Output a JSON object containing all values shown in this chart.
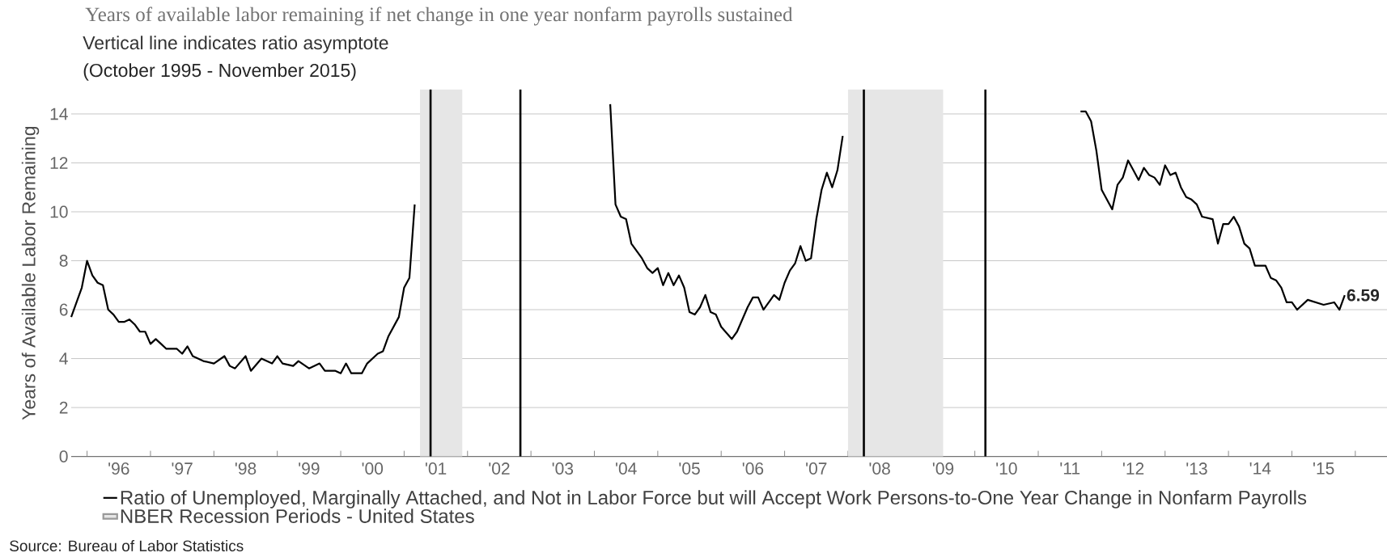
{
  "chart_data": {
    "type": "line",
    "title": "Years of available labor remaining if net change in one year nonfarm payrolls sustained",
    "subtitle": "Vertical line indicates ratio asymptote",
    "annotations": [
      "(October 1995 - November 2015)",
      "Source: Bureau of Labor Statistics"
    ],
    "ylabel": "Years of Available Labor Remaining",
    "x": [
      "1995-10",
      "1995-12",
      "1996-01",
      "1996-02",
      "1996-03",
      "1996-04",
      "1996-05",
      "1996-06",
      "1996-07",
      "1996-08",
      "1996-09",
      "1996-10",
      "1996-11",
      "1996-12",
      "1997-01",
      "1997-02",
      "1997-03",
      "1997-04",
      "1997-06",
      "1997-07",
      "1997-08",
      "1997-09",
      "1997-11",
      "1998-01",
      "1998-03",
      "1998-04",
      "1998-05",
      "1998-07",
      "1998-08",
      "1998-10",
      "1998-12",
      "1999-01",
      "1999-02",
      "1999-04",
      "1999-05",
      "1999-07",
      "1999-09",
      "1999-10",
      "1999-12",
      "2000-01",
      "2000-02",
      "2000-03",
      "2000-05",
      "2000-06",
      "2000-08",
      "2000-09",
      "2000-10",
      "2000-12",
      "2001-01",
      "2001-02",
      "2001-03",
      "2001-04",
      "2004-03",
      "2004-04",
      "2004-05",
      "2004-06",
      "2004-07",
      "2004-08",
      "2004-10",
      "2004-11",
      "2004-12",
      "2005-01",
      "2005-02",
      "2005-03",
      "2005-04",
      "2005-05",
      "2005-06",
      "2005-07",
      "2005-08",
      "2005-09",
      "2005-10",
      "2005-11",
      "2005-12",
      "2006-01",
      "2006-03",
      "2006-04",
      "2006-06",
      "2006-07",
      "2006-08",
      "2006-09",
      "2006-11",
      "2006-12",
      "2007-01",
      "2007-02",
      "2007-03",
      "2007-04",
      "2007-05",
      "2007-06",
      "2007-07",
      "2007-08",
      "2007-09",
      "2007-10",
      "2007-11",
      "2007-12",
      "2008-01",
      "2011-08",
      "2011-09",
      "2011-10",
      "2011-11",
      "2011-12",
      "2012-01",
      "2012-03",
      "2012-04",
      "2012-05",
      "2012-06",
      "2012-07",
      "2012-08",
      "2012-09",
      "2012-10",
      "2012-11",
      "2012-12",
      "2013-01",
      "2013-02",
      "2013-03",
      "2013-04",
      "2013-05",
      "2013-06",
      "2013-07",
      "2013-08",
      "2013-10",
      "2013-11",
      "2013-12",
      "2014-01",
      "2014-02",
      "2014-03",
      "2014-04",
      "2014-05",
      "2014-06",
      "2014-08",
      "2014-09",
      "2014-10",
      "2014-11",
      "2014-12",
      "2015-01",
      "2015-02",
      "2015-04",
      "2015-07",
      "2015-09",
      "2015-10",
      "2015-11"
    ],
    "series": [
      {
        "name": "Ratio of Unemployed, Marginally Attached, and Not in Labor Force but will Accept Work Persons-to-One Year Change in Nonfarm Payrolls",
        "color": "#000000",
        "values": [
          5.7,
          6.9,
          8.0,
          7.4,
          7.1,
          7.0,
          6.0,
          5.8,
          5.5,
          5.5,
          5.6,
          5.4,
          5.1,
          5.1,
          4.6,
          4.8,
          4.6,
          4.4,
          4.4,
          4.2,
          4.5,
          4.1,
          3.9,
          3.8,
          4.1,
          3.7,
          3.6,
          4.1,
          3.5,
          4.0,
          3.8,
          4.1,
          3.8,
          3.7,
          3.9,
          3.6,
          3.8,
          3.5,
          3.5,
          3.4,
          3.8,
          3.4,
          3.4,
          3.8,
          4.2,
          4.3,
          4.9,
          5.7,
          6.9,
          7.3,
          10.3,
          null,
          null,
          14.4,
          10.3,
          9.8,
          9.7,
          8.7,
          8.1,
          7.7,
          7.5,
          7.7,
          7.0,
          7.5,
          7.0,
          7.4,
          6.9,
          5.9,
          5.8,
          6.1,
          6.6,
          5.9,
          5.8,
          5.3,
          4.8,
          5.1,
          6.1,
          6.5,
          6.5,
          6.0,
          6.6,
          6.4,
          7.1,
          7.6,
          7.9,
          8.6,
          8.0,
          8.1,
          9.7,
          10.9,
          11.6,
          11.0,
          11.7,
          13.1,
          null,
          null,
          14.1,
          14.1,
          13.7,
          12.5,
          10.9,
          10.1,
          11.1,
          11.4,
          12.1,
          11.7,
          11.3,
          11.8,
          11.5,
          11.4,
          11.1,
          11.9,
          11.5,
          11.6,
          11.0,
          10.6,
          10.5,
          10.3,
          9.8,
          9.7,
          8.7,
          9.5,
          9.5,
          9.8,
          9.4,
          8.7,
          8.5,
          7.8,
          7.8,
          7.3,
          7.2,
          6.9,
          6.3,
          6.3,
          6.0,
          6.4,
          6.2,
          6.3,
          6.0,
          6.59
        ],
        "value_labels": [
          null,
          null,
          null,
          null,
          null,
          null,
          null,
          null,
          null,
          null,
          null,
          null,
          null,
          null,
          null,
          null,
          null,
          null,
          null,
          null,
          null,
          null,
          null,
          null,
          null,
          null,
          null,
          null,
          null,
          null,
          null,
          null,
          null,
          null,
          null,
          null,
          null,
          null,
          null,
          null,
          null,
          null,
          null,
          null,
          null,
          null,
          null,
          null,
          null,
          null,
          null,
          null,
          null,
          null,
          null,
          null,
          null,
          null,
          null,
          null,
          null,
          null,
          null,
          null,
          null,
          null,
          null,
          null,
          null,
          null,
          null,
          null,
          null,
          null,
          null,
          null,
          null,
          null,
          null,
          null,
          null,
          null,
          null,
          null,
          null,
          null,
          null,
          null,
          null,
          null,
          null,
          null,
          null,
          null,
          null,
          null,
          null,
          null,
          null,
          null,
          null,
          null,
          null,
          null,
          null,
          null,
          null,
          null,
          null,
          null,
          null,
          null,
          null,
          null,
          null,
          null,
          null,
          null,
          null,
          null,
          null,
          null,
          null,
          null,
          null,
          null,
          null,
          null,
          null,
          null,
          null,
          null,
          null,
          null,
          null,
          null,
          null,
          null,
          null,
          "6.59"
        ]
      }
    ],
    "xlim": [
      "1995-10",
      "2016-07"
    ],
    "xticks": [
      {
        "value": "1996-01",
        "label": null
      },
      {
        "value": "1996-07",
        "label": "'96"
      },
      {
        "value": "1997-01",
        "label": null
      },
      {
        "value": "1997-07",
        "label": "'97"
      },
      {
        "value": "1998-01",
        "label": null
      },
      {
        "value": "1998-07",
        "label": "'98"
      },
      {
        "value": "1999-01",
        "label": null
      },
      {
        "value": "1999-07",
        "label": "'99"
      },
      {
        "value": "2000-01",
        "label": null
      },
      {
        "value": "2000-07",
        "label": "'00"
      },
      {
        "value": "2001-01",
        "label": null
      },
      {
        "value": "2001-07",
        "label": "'01"
      },
      {
        "value": "2002-01",
        "label": null
      },
      {
        "value": "2002-07",
        "label": "'02"
      },
      {
        "value": "2003-01",
        "label": null
      },
      {
        "value": "2003-07",
        "label": "'03"
      },
      {
        "value": "2004-01",
        "label": null
      },
      {
        "value": "2004-07",
        "label": "'04"
      },
      {
        "value": "2005-01",
        "label": null
      },
      {
        "value": "2005-07",
        "label": "'05"
      },
      {
        "value": "2006-01",
        "label": null
      },
      {
        "value": "2006-07",
        "label": "'06"
      },
      {
        "value": "2007-01",
        "label": null
      },
      {
        "value": "2007-07",
        "label": "'07"
      },
      {
        "value": "2008-01",
        "label": null
      },
      {
        "value": "2008-07",
        "label": "'08"
      },
      {
        "value": "2009-01",
        "label": null
      },
      {
        "value": "2009-07",
        "label": "'09"
      },
      {
        "value": "2010-01",
        "label": null
      },
      {
        "value": "2010-07",
        "label": "'10"
      },
      {
        "value": "2011-01",
        "label": null
      },
      {
        "value": "2011-07",
        "label": "'11"
      },
      {
        "value": "2012-01",
        "label": null
      },
      {
        "value": "2012-07",
        "label": "'12"
      },
      {
        "value": "2013-01",
        "label": null
      },
      {
        "value": "2013-07",
        "label": "'13"
      },
      {
        "value": "2014-01",
        "label": null
      },
      {
        "value": "2014-07",
        "label": "'14"
      },
      {
        "value": "2015-01",
        "label": null
      },
      {
        "value": "2015-07",
        "label": "'15"
      },
      {
        "value": "2016-01",
        "label": null
      }
    ],
    "ylim": [
      0,
      15
    ],
    "yticks": [
      0,
      2,
      4,
      6,
      8,
      10,
      12,
      14
    ],
    "grid": "y",
    "legend": "bottom",
    "marker": "none",
    "line_style": "solid",
    "ref_lines": [
      {
        "axis": "x",
        "value": "2001-06",
        "color": "#000000"
      },
      {
        "axis": "x",
        "value": "2002-11",
        "color": "#000000"
      },
      {
        "axis": "x",
        "value": "2008-04",
        "color": "#000000"
      },
      {
        "axis": "x",
        "value": "2010-03",
        "color": "#000000"
      }
    ],
    "bands": [
      {
        "axis": "x",
        "from": "2001-04",
        "to": "2001-12",
        "label": "NBER Recession Periods - United States",
        "color": "#e6e6e6"
      },
      {
        "axis": "x",
        "from": "2008-01",
        "to": "2009-07",
        "color": "#e6e6e6"
      }
    ]
  }
}
